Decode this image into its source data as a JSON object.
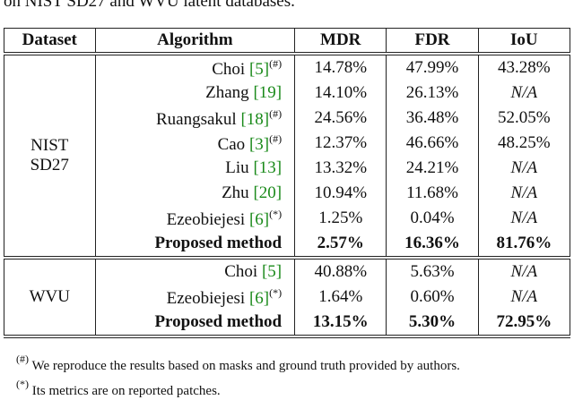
{
  "caption": "on NIST SD27 and WVU latent databases.",
  "table": {
    "header": [
      "Dataset",
      "Algorithm",
      "MDR",
      "FDR",
      "IoU"
    ],
    "groups": [
      {
        "dataset": [
          "NIST",
          "SD27"
        ],
        "rows": [
          {
            "name": "Choi",
            "ref": "[5]",
            "note": "(#)",
            "values": [
              "14.78%",
              "47.99%",
              "43.28%"
            ]
          },
          {
            "name": "Zhang",
            "ref": "[19]",
            "values": [
              "14.10%",
              "26.13%",
              "N/A"
            ]
          },
          {
            "name": "Ruangsakul",
            "ref": "[18]",
            "note": "(#)",
            "values": [
              "24.56%",
              "36.48%",
              "52.05%"
            ]
          },
          {
            "name": "Cao",
            "ref": "[3]",
            "note": "(#)",
            "values": [
              "12.37%",
              "46.66%",
              "48.25%"
            ]
          },
          {
            "name": "Liu",
            "ref": "[13]",
            "values": [
              "13.32%",
              "24.21%",
              "N/A"
            ]
          },
          {
            "name": "Zhu",
            "ref": "[20]",
            "values": [
              "10.94%",
              "11.68%",
              "N/A"
            ]
          },
          {
            "name": "Ezeobiejesi",
            "ref": "[6]",
            "note": "(*)",
            "values": [
              "1.25%",
              "0.04%",
              "N/A"
            ]
          },
          {
            "name": "Proposed method",
            "bold": true,
            "values": [
              "2.57%",
              "16.36%",
              "81.76%"
            ]
          }
        ]
      },
      {
        "dataset": [
          "WVU"
        ],
        "rows": [
          {
            "name": "Choi",
            "ref": "[5]",
            "values": [
              "40.88%",
              "5.63%",
              "N/A"
            ]
          },
          {
            "name": "Ezeobiejesi",
            "ref": "[6]",
            "note": "(*)",
            "values": [
              "1.64%",
              "0.60%",
              "N/A"
            ]
          },
          {
            "name": "Proposed method",
            "bold": true,
            "values": [
              "13.15%",
              "5.30%",
              "72.95%"
            ]
          }
        ]
      }
    ]
  },
  "footnotes": [
    {
      "mark": "(#)",
      "text": "We reproduce the results based on masks and ground truth provided by authors."
    },
    {
      "mark": "(*)",
      "text": "Its metrics are on reported patches."
    }
  ]
}
